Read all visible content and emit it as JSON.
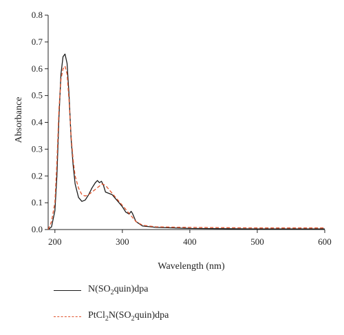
{
  "chart_data": {
    "type": "line",
    "xlabel": "Wavelength (nm)",
    "ylabel": "Absorbance",
    "xlim": [
      190,
      600
    ],
    "ylim": [
      0,
      0.8
    ],
    "xticks": [
      200,
      300,
      400,
      500,
      600
    ],
    "yticks": [
      0.0,
      0.1,
      0.2,
      0.3,
      0.4,
      0.5,
      0.6,
      0.7,
      0.8
    ],
    "grid": false,
    "legend_position": "bottom-left",
    "series": [
      {
        "name": "N(SO2quin)dpa",
        "name_main": "N(SO",
        "name_sub": "2",
        "name_rest": "quin)dpa",
        "color": "#1a1a1a",
        "style": "solid",
        "x": [
          190,
          195,
          200,
          203,
          206,
          209,
          212,
          215,
          218,
          221,
          224,
          227,
          230,
          235,
          240,
          245,
          250,
          255,
          260,
          263,
          266,
          269,
          272,
          275,
          280,
          285,
          290,
          295,
          300,
          305,
          310,
          313,
          315,
          320,
          330,
          350,
          400,
          500,
          600
        ],
        "y": [
          0.0,
          0.01,
          0.07,
          0.2,
          0.42,
          0.58,
          0.645,
          0.655,
          0.62,
          0.5,
          0.34,
          0.24,
          0.17,
          0.12,
          0.105,
          0.11,
          0.13,
          0.155,
          0.175,
          0.183,
          0.175,
          0.18,
          0.165,
          0.14,
          0.135,
          0.13,
          0.115,
          0.1,
          0.085,
          0.065,
          0.058,
          0.068,
          0.06,
          0.03,
          0.013,
          0.008,
          0.004,
          0.002,
          0.002
        ]
      },
      {
        "name": "PtCl2N(SO2quin)dpa",
        "name_main": "PtCl",
        "name_sub": "2",
        "name_rest": "N(SO",
        "name_sub2": "2",
        "name_rest2": "quin)dpa",
        "color": "#e0522b",
        "style": "dashed",
        "x": [
          190,
          195,
          200,
          203,
          206,
          209,
          212,
          215,
          218,
          221,
          224,
          227,
          230,
          235,
          240,
          245,
          250,
          255,
          260,
          265,
          270,
          275,
          280,
          285,
          290,
          295,
          300,
          305,
          310,
          315,
          320,
          330,
          350,
          400,
          500,
          600
        ],
        "y": [
          0.0,
          0.03,
          0.1,
          0.25,
          0.45,
          0.56,
          0.6,
          0.61,
          0.58,
          0.48,
          0.35,
          0.26,
          0.2,
          0.155,
          0.13,
          0.125,
          0.13,
          0.14,
          0.15,
          0.16,
          0.17,
          0.165,
          0.15,
          0.135,
          0.12,
          0.105,
          0.09,
          0.075,
          0.06,
          0.045,
          0.03,
          0.016,
          0.01,
          0.008,
          0.006,
          0.006
        ]
      }
    ]
  }
}
